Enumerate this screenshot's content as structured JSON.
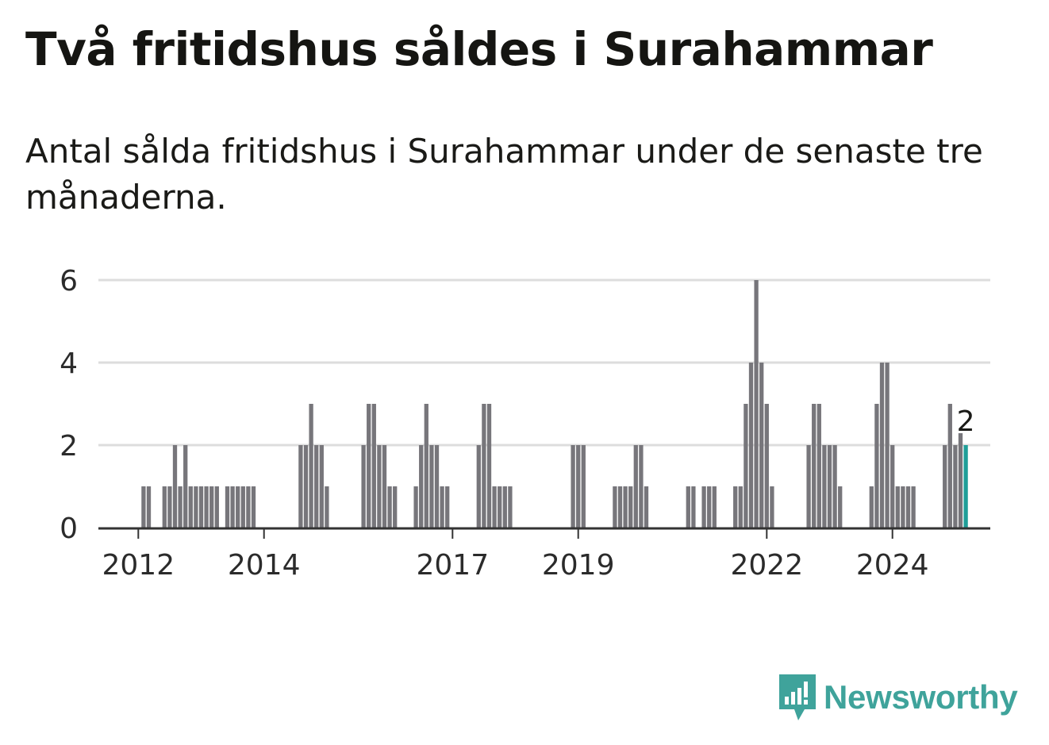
{
  "title": "Två fritidshus såldes i Surahammar",
  "subtitle": "Antal sålda fritidshus i Surahammar under de senaste tre månaderna.",
  "brand": {
    "name": "Newsworthy",
    "color": "#3fa39b",
    "icon": "newsworthy-logo-icon"
  },
  "colors": {
    "bar": "#77767b",
    "highlight": "#1f9e98",
    "grid": "#dddddd",
    "axis": "#333333"
  },
  "chart_data": {
    "type": "bar",
    "title": "Två fritidshus såldes i Surahammar",
    "xlabel": "",
    "ylabel": "",
    "ylim": [
      0,
      6
    ],
    "y_ticks": [
      0,
      2,
      4,
      6
    ],
    "x_ticks": [
      {
        "label": "2012",
        "index": 3
      },
      {
        "label": "2014",
        "index": 27
      },
      {
        "label": "2017",
        "index": 63
      },
      {
        "label": "2019",
        "index": 87
      },
      {
        "label": "2022",
        "index": 123
      },
      {
        "label": "2024",
        "index": 147
      }
    ],
    "values": [
      0,
      0,
      0,
      0,
      1,
      1,
      0,
      0,
      1,
      1,
      2,
      1,
      2,
      1,
      1,
      1,
      1,
      1,
      1,
      0,
      1,
      1,
      1,
      1,
      1,
      1,
      0,
      0,
      0,
      0,
      0,
      0,
      0,
      0,
      2,
      2,
      3,
      2,
      2,
      1,
      0,
      0,
      0,
      0,
      0,
      0,
      2,
      3,
      3,
      2,
      2,
      1,
      1,
      0,
      0,
      0,
      1,
      2,
      3,
      2,
      2,
      1,
      1,
      0,
      0,
      0,
      0,
      0,
      2,
      3,
      3,
      1,
      1,
      1,
      1,
      0,
      0,
      0,
      0,
      0,
      0,
      0,
      0,
      0,
      0,
      0,
      2,
      2,
      2,
      0,
      0,
      0,
      0,
      0,
      1,
      1,
      1,
      1,
      2,
      2,
      1,
      0,
      0,
      0,
      0,
      0,
      0,
      0,
      1,
      1,
      0,
      1,
      1,
      1,
      0,
      0,
      0,
      1,
      1,
      3,
      4,
      6,
      4,
      3,
      1,
      0,
      0,
      0,
      0,
      0,
      0,
      2,
      3,
      3,
      2,
      2,
      2,
      1,
      0,
      0,
      0,
      0,
      0,
      1,
      3,
      4,
      4,
      2,
      1,
      1,
      1,
      1,
      0,
      0,
      0,
      0,
      0,
      2,
      3,
      2,
      2.3,
      2
    ],
    "highlight_index": 161,
    "value_label": "2"
  }
}
